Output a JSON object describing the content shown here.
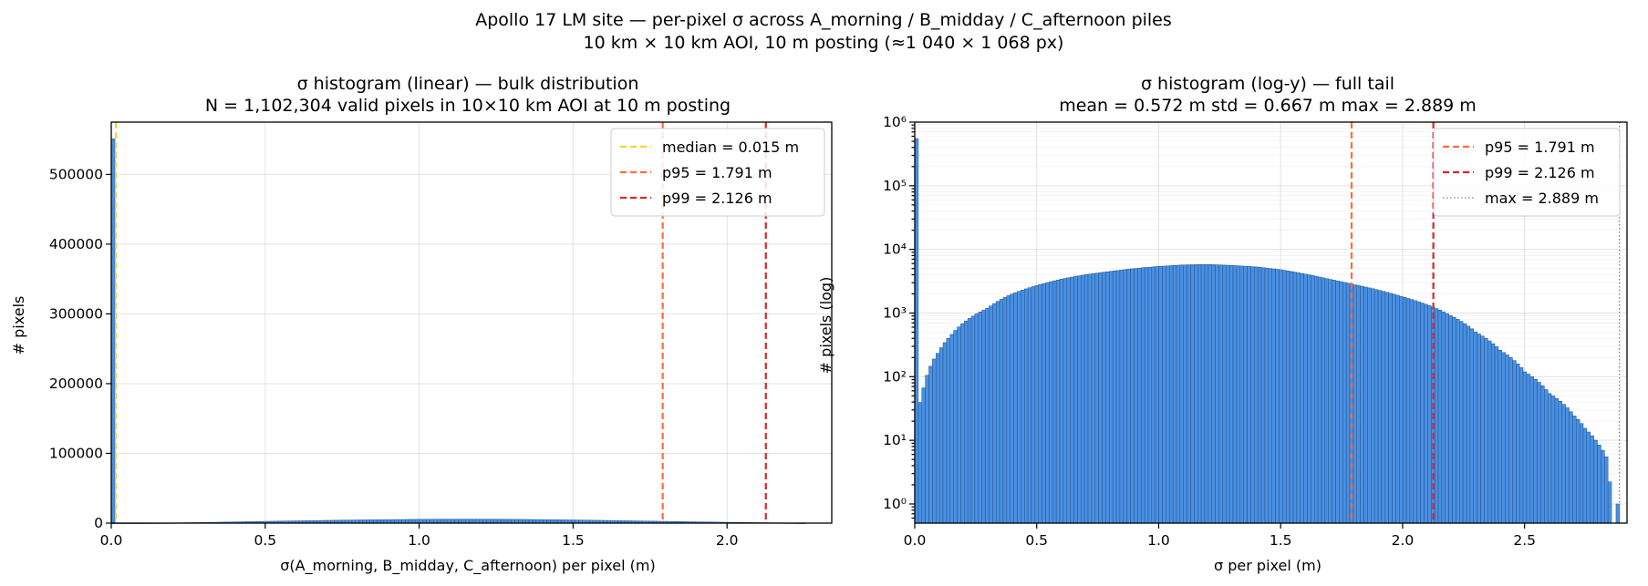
{
  "figure": {
    "title_line1": "Apollo 17 LM site — per-pixel σ across A_morning / B_midday / C_afternoon piles",
    "title_line2": "10 km × 10 km AOI, 10 m posting (≈1 040 × 1 068 px)"
  },
  "colors": {
    "bar_fill": "#4a90e2",
    "bar_edge": "#1f4f8a",
    "median": "#f4d03f",
    "p95": "#ff6b3d",
    "p99": "#d62728",
    "max": "#808080"
  },
  "chart_data": [
    {
      "type": "bar",
      "title_line1": "σ histogram (linear) — bulk distribution",
      "title_line2": "N = 1,102,304 valid pixels in 10×10 km AOI at 10 m posting",
      "xlabel": "σ(A_morning, B_midday, C_afternoon) per pixel (m)",
      "ylabel": "# pixels",
      "xlim": [
        0,
        2.34
      ],
      "ylim": [
        0,
        575000
      ],
      "yscale": "linear",
      "grid": true,
      "legend_position": "top-right",
      "xticks": [
        {
          "v": 0.0,
          "label": "0.0"
        },
        {
          "v": 0.5,
          "label": "0.5"
        },
        {
          "v": 1.0,
          "label": "1.0"
        },
        {
          "v": 1.5,
          "label": "1.5"
        },
        {
          "v": 2.0,
          "label": "2.0"
        }
      ],
      "yticks": [
        {
          "v": 0,
          "label": "0"
        },
        {
          "v": 100000,
          "label": "100000"
        },
        {
          "v": 200000,
          "label": "200000"
        },
        {
          "v": 300000,
          "label": "300000"
        },
        {
          "v": 400000,
          "label": "400000"
        },
        {
          "v": 500000,
          "label": "500000"
        }
      ],
      "spike": {
        "x": 0.0,
        "width": 0.012,
        "count": 551000
      },
      "bulk_profile": [
        [
          0.0,
          0
        ],
        [
          0.1,
          10
        ],
        [
          0.2,
          300
        ],
        [
          0.3,
          900
        ],
        [
          0.4,
          1700
        ],
        [
          0.5,
          2500
        ],
        [
          0.6,
          3200
        ],
        [
          0.7,
          3900
        ],
        [
          0.8,
          4500
        ],
        [
          0.9,
          5000
        ],
        [
          1.0,
          5400
        ],
        [
          1.1,
          5600
        ],
        [
          1.2,
          5600
        ],
        [
          1.3,
          5400
        ],
        [
          1.4,
          5000
        ],
        [
          1.5,
          4500
        ],
        [
          1.6,
          3900
        ],
        [
          1.7,
          3200
        ],
        [
          1.8,
          2500
        ],
        [
          1.9,
          1800
        ],
        [
          2.0,
          1200
        ],
        [
          2.1,
          700
        ],
        [
          2.2,
          300
        ],
        [
          2.25,
          0
        ]
      ],
      "bin_width": 0.0115,
      "range": [
        0.0,
        2.25
      ],
      "vlines": [
        {
          "x": 0.015,
          "label": "median = 0.015 m",
          "color": "#f4d03f",
          "style": "dashed"
        },
        {
          "x": 1.791,
          "label": "p95 = 1.791 m",
          "color": "#ff6b3d",
          "style": "dashed"
        },
        {
          "x": 2.126,
          "label": "p99 = 2.126 m",
          "color": "#d62728",
          "style": "dashed"
        }
      ]
    },
    {
      "type": "bar",
      "title_line1": "σ histogram (log-y) — full tail",
      "title_line2": "mean = 0.572 m   std = 0.667 m   max = 2.889 m",
      "xlabel": "σ per pixel (m)",
      "ylabel": "# pixels (log)",
      "xlim": [
        0,
        2.92
      ],
      "ylim": [
        0.5,
        1000000
      ],
      "yscale": "log",
      "grid": true,
      "legend_position": "top-right",
      "xticks": [
        {
          "v": 0.0,
          "label": "0.0"
        },
        {
          "v": 0.5,
          "label": "0.5"
        },
        {
          "v": 1.0,
          "label": "1.0"
        },
        {
          "v": 1.5,
          "label": "1.5"
        },
        {
          "v": 2.0,
          "label": "2.0"
        },
        {
          "v": 2.5,
          "label": "2.5"
        }
      ],
      "yticks": [
        {
          "v": 1,
          "label": "10⁰"
        },
        {
          "v": 10,
          "label": "10¹"
        },
        {
          "v": 100,
          "label": "10²"
        },
        {
          "v": 1000,
          "label": "10³"
        },
        {
          "v": 10000,
          "label": "10⁴"
        },
        {
          "v": 100000,
          "label": "10⁵"
        },
        {
          "v": 1000000,
          "label": "10⁶"
        }
      ],
      "spike": {
        "x": 0.0,
        "width": 0.0145,
        "count": 551000
      },
      "bulk_profile": [
        [
          0.0145,
          30
        ],
        [
          0.03,
          50
        ],
        [
          0.06,
          130
        ],
        [
          0.1,
          250
        ],
        [
          0.15,
          450
        ],
        [
          0.2,
          700
        ],
        [
          0.3,
          1200
        ],
        [
          0.4,
          2000
        ],
        [
          0.5,
          2700
        ],
        [
          0.6,
          3400
        ],
        [
          0.7,
          4000
        ],
        [
          0.8,
          4500
        ],
        [
          0.9,
          5000
        ],
        [
          1.0,
          5400
        ],
        [
          1.1,
          5700
        ],
        [
          1.2,
          5800
        ],
        [
          1.3,
          5600
        ],
        [
          1.4,
          5300
        ],
        [
          1.5,
          4800
        ],
        [
          1.6,
          4100
        ],
        [
          1.7,
          3400
        ],
        [
          1.8,
          2800
        ],
        [
          1.9,
          2300
        ],
        [
          2.0,
          1800
        ],
        [
          2.1,
          1350
        ],
        [
          2.2,
          900
        ],
        [
          2.3,
          500
        ],
        [
          2.4,
          260
        ],
        [
          2.5,
          120
        ],
        [
          2.6,
          55
        ],
        [
          2.7,
          25
        ],
        [
          2.75,
          15
        ],
        [
          2.8,
          9
        ],
        [
          2.84,
          5
        ],
        [
          2.85,
          2
        ],
        [
          2.86,
          0
        ]
      ],
      "tail_bins": [
        {
          "x": 2.875,
          "count": 1
        }
      ],
      "bin_width": 0.0145,
      "range": [
        0.0145,
        2.86
      ],
      "vlines": [
        {
          "x": 1.791,
          "label": "p95 = 1.791 m",
          "color": "#ff6b3d",
          "style": "dashed"
        },
        {
          "x": 2.126,
          "label": "p99 = 2.126 m",
          "color": "#d62728",
          "style": "dashed"
        },
        {
          "x": 2.889,
          "label": "max = 2.889 m",
          "color": "#808080",
          "style": "dotted"
        }
      ]
    }
  ]
}
